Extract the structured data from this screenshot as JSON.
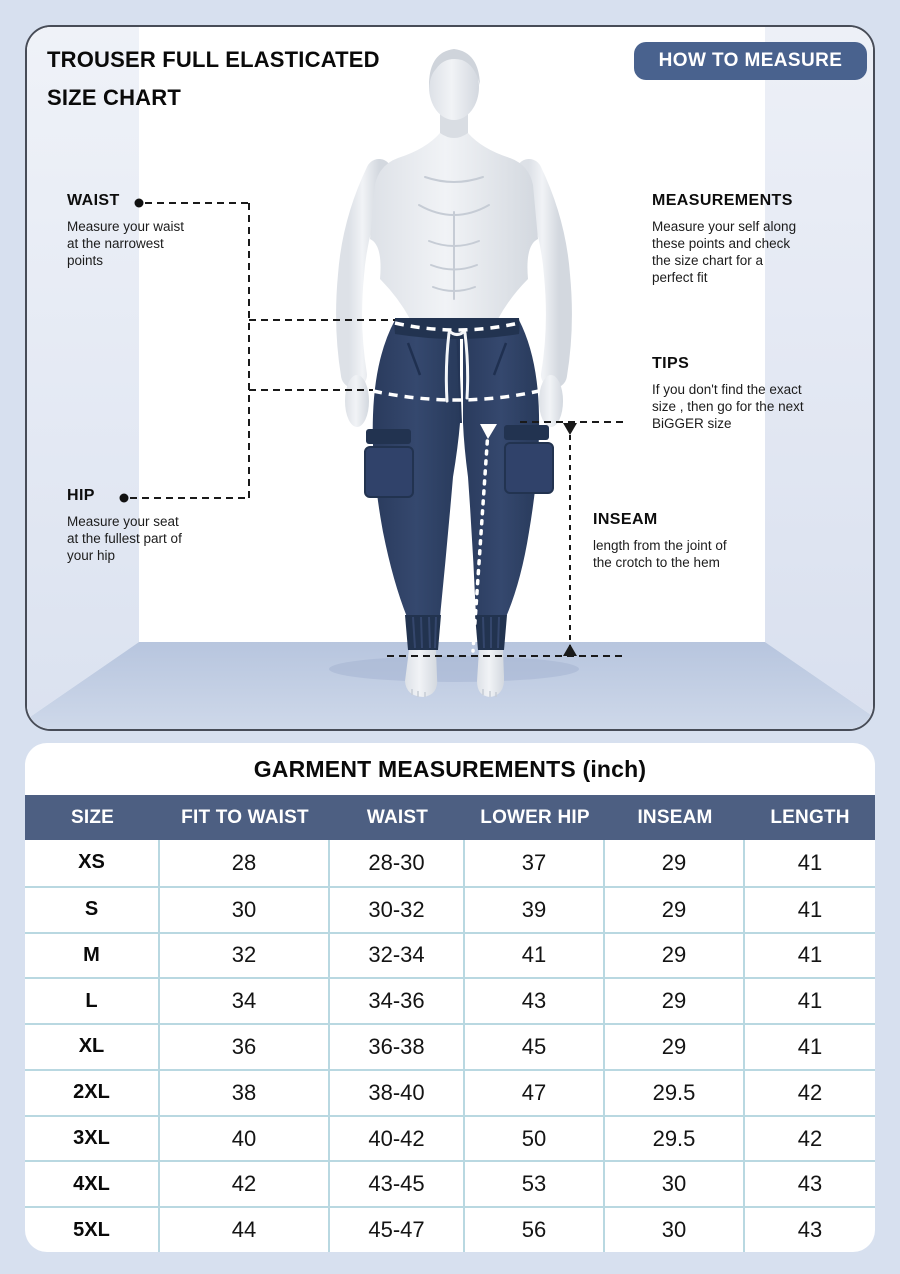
{
  "colors": {
    "accent": "#4d5f82",
    "badge": "#49628e",
    "grid_line": "#b9d8e1",
    "background": "#d7e0ef",
    "pants_navy": "#2e4063",
    "floor": "#c2cfe4"
  },
  "top_card": {
    "title": "TROUSER FULL ELASTICATED\nSIZE CHART",
    "badge_label": "HOW TO MEASURE",
    "callouts": {
      "waist": {
        "heading": "WAIST",
        "description": "Measure your waist\nat the narrowest\npoints"
      },
      "hip": {
        "heading": "HIP",
        "description": "Measure your seat\nat the fullest part of\nyour hip"
      },
      "measurements": {
        "heading": "MEASUREMENTS",
        "description": "Measure your self along\nthese points and check\nthe size chart for a\nperfect fit"
      },
      "tips": {
        "heading": "TIPS",
        "description": "If you don't find the exact\nsize , then go for the next\nBiGGER size"
      },
      "inseam": {
        "heading": "INSEAM",
        "description": "length from the joint of\nthe crotch to the hem"
      }
    }
  },
  "table": {
    "title": "GARMENT MEASUREMENTS (inch)",
    "columns": [
      "SIZE",
      "FIT TO WAIST",
      "WAIST",
      "LOWER HIP",
      "INSEAM",
      "LENGTH"
    ],
    "rows": [
      [
        "XS",
        "28",
        "28-30",
        "37",
        "29",
        "41"
      ],
      [
        "S",
        "30",
        "30-32",
        "39",
        "29",
        "41"
      ],
      [
        "M",
        "32",
        "32-34",
        "41",
        "29",
        "41"
      ],
      [
        "L",
        "34",
        "34-36",
        "43",
        "29",
        "41"
      ],
      [
        "XL",
        "36",
        "36-38",
        "45",
        "29",
        "41"
      ],
      [
        "2XL",
        "38",
        "38-40",
        "47",
        "29.5",
        "42"
      ],
      [
        "3XL",
        "40",
        "40-42",
        "50",
        "29.5",
        "42"
      ],
      [
        "4XL",
        "42",
        "43-45",
        "53",
        "30",
        "43"
      ],
      [
        "5XL",
        "44",
        "45-47",
        "56",
        "30",
        "43"
      ]
    ]
  },
  "chart_data": {
    "type": "table",
    "title": "GARMENT MEASUREMENTS (inch)",
    "columns": [
      "SIZE",
      "FIT TO WAIST",
      "WAIST",
      "LOWER HIP",
      "INSEAM",
      "LENGTH"
    ],
    "rows": [
      [
        "XS",
        28,
        "28-30",
        37,
        29,
        41
      ],
      [
        "S",
        30,
        "30-32",
        39,
        29,
        41
      ],
      [
        "M",
        32,
        "32-34",
        41,
        29,
        41
      ],
      [
        "L",
        34,
        "34-36",
        43,
        29,
        41
      ],
      [
        "XL",
        36,
        "36-38",
        45,
        29,
        41
      ],
      [
        "2XL",
        38,
        "38-40",
        47,
        29.5,
        42
      ],
      [
        "3XL",
        40,
        "40-42",
        50,
        29.5,
        42
      ],
      [
        "4XL",
        42,
        "43-45",
        53,
        30,
        43
      ],
      [
        "5XL",
        44,
        "45-47",
        56,
        30,
        43
      ]
    ]
  }
}
